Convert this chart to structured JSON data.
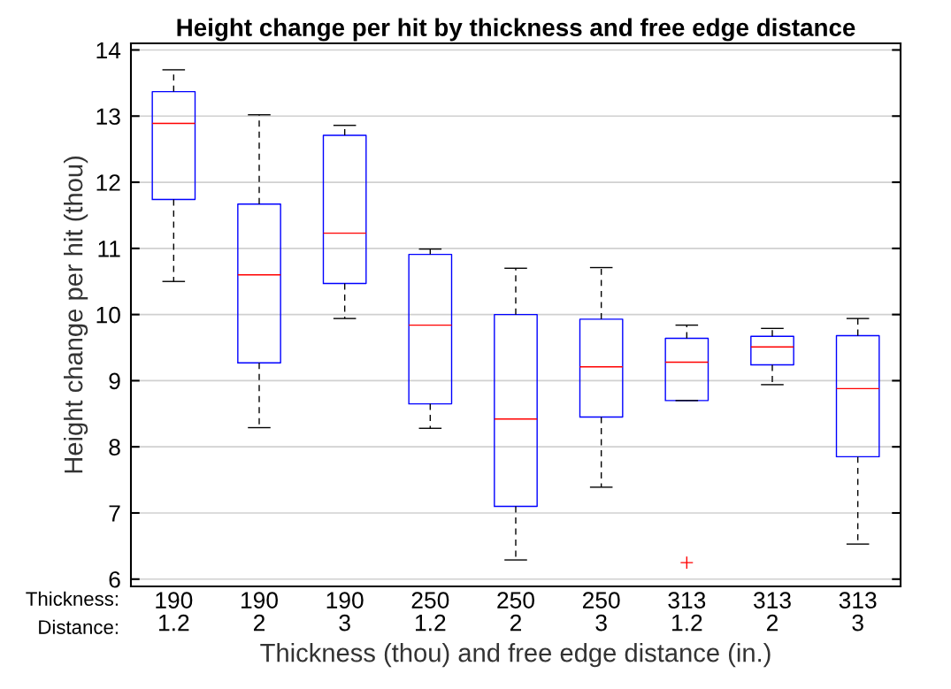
{
  "chart_data": {
    "type": "box",
    "title": "Height change per hit by thickness and free edge distance",
    "xlabel": "Thickness (thou) and free edge distance (in.)",
    "ylabel": "Height change per hit (thou)",
    "categories": [
      "190\n1.2",
      "190\n2",
      "190\n3",
      "250\n1.2",
      "250\n2",
      "250\n3",
      "313\n1.2",
      "313\n2",
      "313\n3"
    ],
    "annotations": [
      "Thickness:",
      "Distance:"
    ],
    "boxes": [
      {
        "low": 10.5,
        "q1": 11.74,
        "median": 12.89,
        "q3": 13.37,
        "high": 13.7
      },
      {
        "low": 8.29,
        "q1": 9.27,
        "median": 10.6,
        "q3": 11.67,
        "high": 13.02
      },
      {
        "low": 9.94,
        "q1": 10.47,
        "median": 11.23,
        "q3": 12.71,
        "high": 12.86
      },
      {
        "low": 8.28,
        "q1": 8.65,
        "median": 9.84,
        "q3": 10.91,
        "high": 10.99
      },
      {
        "low": 6.29,
        "q1": 7.1,
        "median": 8.42,
        "q3": 10.0,
        "high": 10.7
      },
      {
        "low": 7.39,
        "q1": 8.45,
        "median": 9.21,
        "q3": 9.93,
        "high": 10.71
      },
      {
        "low": 8.7,
        "q1": 8.7,
        "median": 9.28,
        "q3": 9.64,
        "high": 9.84,
        "outliers": [
          6.25
        ]
      },
      {
        "low": 8.94,
        "q1": 9.24,
        "median": 9.51,
        "q3": 9.67,
        "high": 9.79
      },
      {
        "low": 6.53,
        "q1": 7.85,
        "median": 8.88,
        "q3": 9.68,
        "high": 9.94
      }
    ],
    "color": "#0000ff",
    "ylim": [
      5.89,
      14.1
    ],
    "yticks": [
      6,
      7,
      8,
      9,
      10,
      11,
      12,
      13,
      14
    ],
    "grid": "y"
  }
}
